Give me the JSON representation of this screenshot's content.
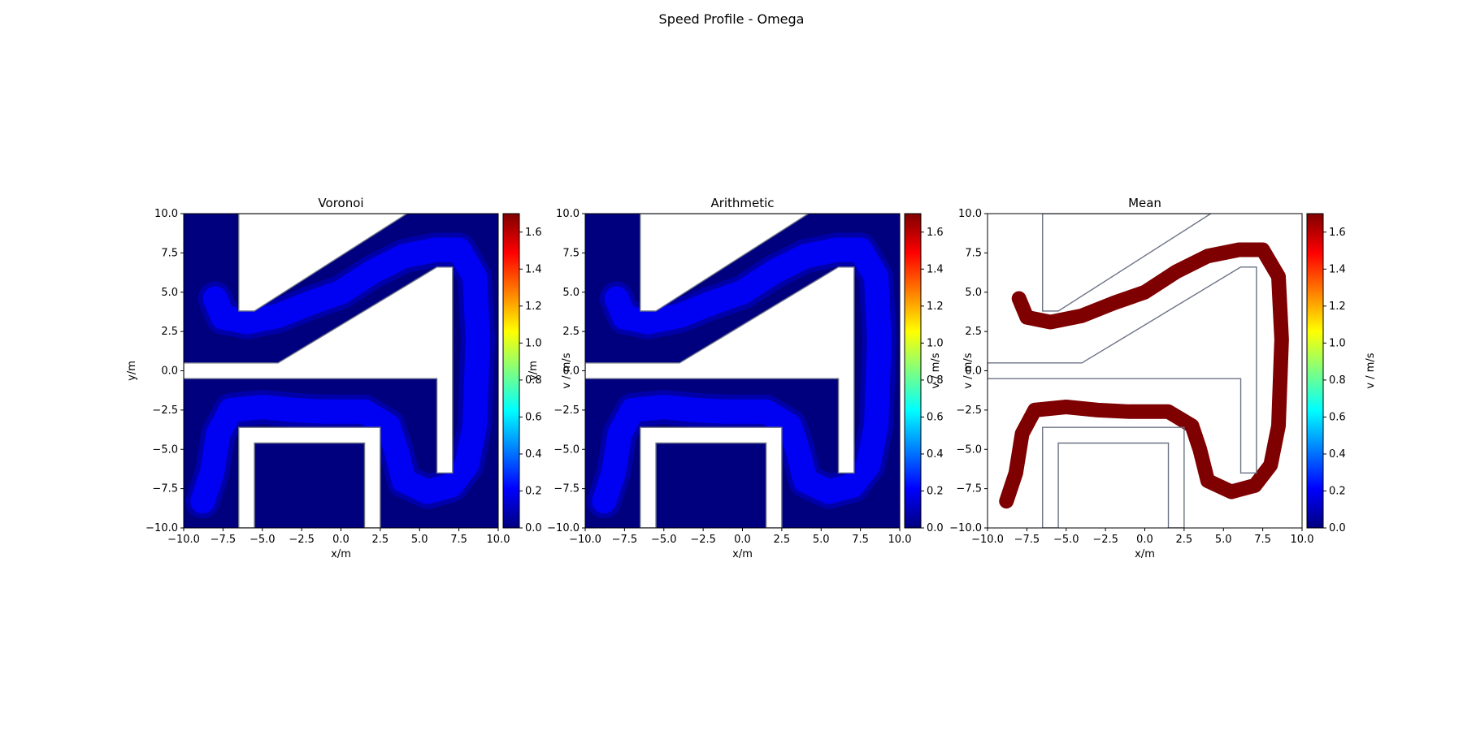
{
  "figure": {
    "title": "Speed Profile - Omega"
  },
  "colormap": {
    "name": "jet",
    "stops": [
      "#00007f",
      "#0000ff",
      "#007fff",
      "#00ffff",
      "#7fff7f",
      "#ffff00",
      "#ff7f00",
      "#ff0000",
      "#7f0000"
    ]
  },
  "chart_data": [
    {
      "type": "heatmap",
      "title": "Voronoi",
      "xlabel": "x/m",
      "ylabel": "y/m",
      "xlim": [
        -10,
        10
      ],
      "ylim": [
        -10,
        10
      ],
      "xticks": [
        "−10.0",
        "−7.5",
        "−5.0",
        "−2.5",
        "0.0",
        "2.5",
        "5.0",
        "7.5",
        "10.0"
      ],
      "yticks": [
        "−10.0",
        "−7.5",
        "−5.0",
        "−2.5",
        "0.0",
        "2.5",
        "5.0",
        "7.5",
        "10.0"
      ],
      "colorbar": {
        "label": "v / m/s",
        "range": [
          0,
          1.7
        ],
        "ticks": [
          "0.0",
          "0.2",
          "0.4",
          "0.6",
          "0.8",
          "1.0",
          "1.2",
          "1.4",
          "1.6"
        ]
      },
      "background_value": 0.0,
      "path_value": 0.2,
      "path_color": "#0000ff"
    },
    {
      "type": "heatmap",
      "title": "Arithmetic",
      "xlabel": "x/m",
      "ylabel": "y/m",
      "xlim": [
        -10,
        10
      ],
      "ylim": [
        -10,
        10
      ],
      "xticks": [
        "−10.0",
        "−7.5",
        "−5.0",
        "−2.5",
        "0.0",
        "2.5",
        "5.0",
        "7.5",
        "10.0"
      ],
      "yticks": [
        "−10.0",
        "−7.5",
        "−5.0",
        "−2.5",
        "0.0",
        "2.5",
        "5.0",
        "7.5",
        "10.0"
      ],
      "colorbar": {
        "label": "v / m/s",
        "range": [
          0,
          1.7
        ],
        "ticks": [
          "0.0",
          "0.2",
          "0.4",
          "0.6",
          "0.8",
          "1.0",
          "1.2",
          "1.4",
          "1.6"
        ]
      },
      "background_value": 0.0,
      "path_value": 0.22,
      "path_color": "#0000ff"
    },
    {
      "type": "heatmap",
      "title": "Mean",
      "xlabel": "x/m",
      "ylabel": "v / m/s",
      "xlim": [
        -10,
        10
      ],
      "ylim": [
        -10,
        10
      ],
      "xticks": [
        "−10.0",
        "−7.5",
        "−5.0",
        "−2.5",
        "0.0",
        "2.5",
        "5.0",
        "7.5",
        "10.0"
      ],
      "yticks": [
        "−10.0",
        "−7.5",
        "−5.0",
        "−2.5",
        "0.0",
        "2.5",
        "5.0",
        "7.5",
        "10.0"
      ],
      "colorbar": {
        "label": "v / m/s",
        "range": [
          0,
          1.7
        ],
        "ticks": [
          "0.0",
          "0.2",
          "0.4",
          "0.6",
          "0.8",
          "1.0",
          "1.2",
          "1.4",
          "1.6"
        ]
      },
      "background_value": null,
      "path_value": 1.7,
      "path_color": "#7f0000"
    }
  ],
  "track": {
    "path": [
      [
        -8.0,
        4.6
      ],
      [
        -7.5,
        3.4
      ],
      [
        -6.0,
        3.1
      ],
      [
        -4.0,
        3.5
      ],
      [
        -2.0,
        4.3
      ],
      [
        0.0,
        5.0
      ],
      [
        2.0,
        6.3
      ],
      [
        4.0,
        7.3
      ],
      [
        6.0,
        7.7
      ],
      [
        7.5,
        7.7
      ],
      [
        8.5,
        6.0
      ],
      [
        8.7,
        2.0
      ],
      [
        8.5,
        -3.5
      ],
      [
        8.0,
        -6.0
      ],
      [
        7.0,
        -7.3
      ],
      [
        5.5,
        -7.7
      ],
      [
        4.0,
        -7.0
      ],
      [
        3.5,
        -5.0
      ],
      [
        3.0,
        -3.5
      ],
      [
        1.5,
        -2.6
      ],
      [
        -1.0,
        -2.6
      ],
      [
        -3.0,
        -2.5
      ],
      [
        -5.0,
        -2.3
      ],
      [
        -7.0,
        -2.5
      ],
      [
        -7.8,
        -4.0
      ],
      [
        -8.2,
        -6.5
      ],
      [
        -8.8,
        -8.3
      ]
    ],
    "obstacles": [
      [
        [
          -6.5,
          10
        ],
        [
          -6.5,
          3.8
        ],
        [
          -5.5,
          3.8
        ],
        [
          4.2,
          10
        ]
      ],
      [
        [
          -10,
          0.5
        ],
        [
          -4.0,
          0.5
        ],
        [
          6.1,
          6.6
        ],
        [
          7.1,
          6.6
        ],
        [
          7.1,
          -6.5
        ],
        [
          6.1,
          -6.5
        ],
        [
          6.1,
          -0.5
        ],
        [
          -10,
          -0.5
        ]
      ],
      [
        [
          -6.5,
          -10
        ],
        [
          -6.5,
          -3.6
        ],
        [
          2.5,
          -3.6
        ],
        [
          2.5,
          -10
        ],
        [
          1.5,
          -10
        ],
        [
          1.5,
          -4.6
        ],
        [
          -5.5,
          -4.6
        ],
        [
          -5.5,
          -10
        ]
      ]
    ]
  }
}
